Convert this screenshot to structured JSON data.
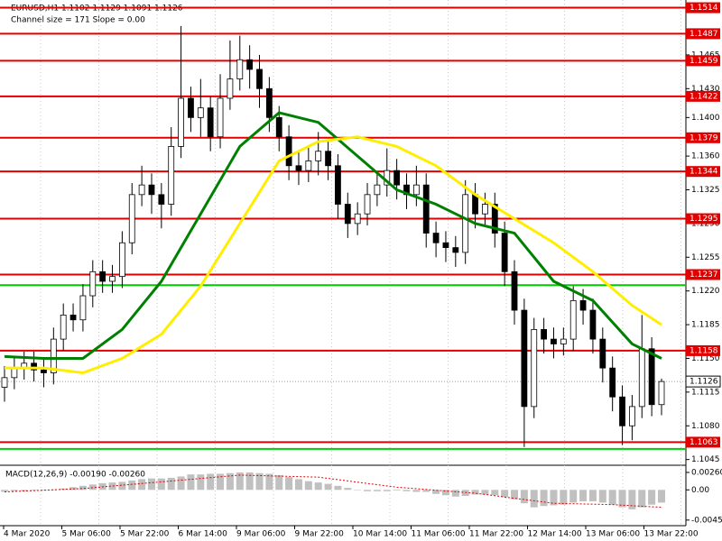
{
  "chart_data": {
    "type": "candlestick",
    "title": "EURUSD,H1  1.1102 1.1129 1.1091 1.1126",
    "subtitle": "Channel size = 171 Slope = 0.00",
    "ylim": [
      1.104,
      1.1522
    ],
    "yticks": [
      1.1465,
      {
        "value": 1.143,
        "label": "1.1430"
      },
      {
        "value": 1.14,
        "label": "1.1400"
      },
      {
        "value": 1.136,
        "label": "1.1360"
      },
      1.1325,
      {
        "value": 1.129,
        "label": "1.1290"
      },
      1.1255,
      {
        "value": 1.122,
        "label": "1.1220"
      },
      1.1185,
      {
        "value": 1.115,
        "label": "1.1150"
      },
      1.1115,
      {
        "value": 1.108,
        "label": "1.1080"
      },
      1.1045
    ],
    "levels": [
      1.1514,
      1.1487,
      1.1459,
      1.1422,
      1.1379,
      1.1344,
      1.1295,
      1.1237,
      1.1158,
      1.1063
    ],
    "level_color": "#e00000",
    "support_lines": [
      1.1226,
      1.1056
    ],
    "support_color": "#00cc00",
    "current_price": 1.1126,
    "categories": [
      "4 Mar 2020",
      "5 Mar 06:00",
      "5 Mar 22:00",
      "6 Mar 14:00",
      "9 Mar 06:00",
      "9 Mar 22:00",
      "10 Mar 14:00",
      "11 Mar 06:00",
      "11 Mar 22:00",
      "12 Mar 14:00",
      "13 Mar 06:00",
      "13 Mar 22:00"
    ],
    "open": [
      1.112,
      1.113,
      1.114,
      1.1145,
      1.1138,
      1.1135,
      1.117,
      1.1195,
      1.119,
      1.1215,
      1.124,
      1.123,
      1.1235,
      1.127,
      1.132,
      1.133,
      1.132,
      1.131,
      1.137,
      1.142,
      1.14,
      1.141,
      1.138,
      1.142,
      1.144,
      1.146,
      1.145,
      1.143,
      1.14,
      1.138,
      1.135,
      1.1345,
      1.1355,
      1.1365,
      1.135,
      1.131,
      1.129,
      1.13,
      1.132,
      1.133,
      1.1345,
      1.133,
      1.132,
      1.133,
      1.128,
      1.127,
      1.1265,
      1.126,
      1.132,
      1.13,
      1.131,
      1.128,
      1.124,
      1.12,
      1.11,
      1.118,
      1.117,
      1.1165,
      1.117,
      1.121,
      1.12,
      1.117,
      1.114,
      1.111,
      1.108,
      1.11,
      1.116,
      1.1102
    ],
    "high": [
      1.1142,
      1.1152,
      1.1157,
      1.1157,
      1.115,
      1.1182,
      1.1207,
      1.1207,
      1.1227,
      1.1252,
      1.1252,
      1.1247,
      1.1282,
      1.1332,
      1.135,
      1.1342,
      1.1332,
      1.139,
      1.1495,
      1.1432,
      1.144,
      1.1422,
      1.1445,
      1.148,
      1.1485,
      1.1475,
      1.1465,
      1.1442,
      1.1412,
      1.1392,
      1.1365,
      1.137,
      1.1385,
      1.1377,
      1.1362,
      1.1322,
      1.1312,
      1.1332,
      1.1342,
      1.1368,
      1.1357,
      1.1342,
      1.135,
      1.1342,
      1.1292,
      1.1282,
      1.1277,
      1.1335,
      1.1332,
      1.1322,
      1.1322,
      1.1292,
      1.1252,
      1.1212,
      1.1192,
      1.1192,
      1.1182,
      1.1182,
      1.1225,
      1.1222,
      1.1212,
      1.1182,
      1.1152,
      1.1122,
      1.1112,
      1.1195,
      1.1172,
      1.1129
    ],
    "low": [
      1.1105,
      1.1118,
      1.1128,
      1.1126,
      1.112,
      1.1123,
      1.1158,
      1.1178,
      1.1178,
      1.1203,
      1.1218,
      1.1218,
      1.1223,
      1.1258,
      1.1308,
      1.13,
      1.1285,
      1.1298,
      1.1358,
      1.1385,
      1.138,
      1.1365,
      1.1368,
      1.1408,
      1.1428,
      1.143,
      1.141,
      1.1385,
      1.1365,
      1.1335,
      1.133,
      1.1333,
      1.134,
      1.1335,
      1.1295,
      1.1275,
      1.1278,
      1.1288,
      1.1308,
      1.1318,
      1.1315,
      1.1305,
      1.1308,
      1.1265,
      1.1255,
      1.125,
      1.1245,
      1.1248,
      1.1285,
      1.1288,
      1.1265,
      1.1225,
      1.1185,
      1.1058,
      1.1088,
      1.1155,
      1.115,
      1.1153,
      1.1158,
      1.1185,
      1.1155,
      1.1125,
      1.1095,
      1.106,
      1.1065,
      1.1088,
      1.109,
      1.1091
    ],
    "close": [
      1.113,
      1.114,
      1.1145,
      1.1138,
      1.1135,
      1.117,
      1.1195,
      1.119,
      1.1215,
      1.124,
      1.123,
      1.1235,
      1.127,
      1.132,
      1.133,
      1.132,
      1.131,
      1.137,
      1.142,
      1.14,
      1.141,
      1.138,
      1.142,
      1.144,
      1.146,
      1.145,
      1.143,
      1.14,
      1.138,
      1.135,
      1.1345,
      1.1355,
      1.1365,
      1.135,
      1.131,
      1.129,
      1.13,
      1.132,
      1.133,
      1.1345,
      1.133,
      1.132,
      1.133,
      1.128,
      1.127,
      1.1265,
      1.126,
      1.132,
      1.13,
      1.131,
      1.128,
      1.124,
      1.12,
      1.11,
      1.118,
      1.117,
      1.1165,
      1.117,
      1.121,
      1.12,
      1.117,
      1.114,
      1.111,
      1.108,
      1.11,
      1.116,
      1.1102,
      1.1126
    ],
    "series": [
      {
        "color": "#008000",
        "x": [
          0,
          4,
          8,
          12,
          16,
          20,
          24,
          28,
          32,
          36,
          40,
          44,
          48,
          52,
          56,
          60,
          64,
          67
        ],
        "values": [
          1.1152,
          1.115,
          1.115,
          1.118,
          1.123,
          1.13,
          1.137,
          1.1405,
          1.1395,
          1.136,
          1.1325,
          1.131,
          1.129,
          1.128,
          1.123,
          1.121,
          1.1165,
          1.115
        ]
      },
      {
        "color": "#ffee00",
        "x": [
          0,
          4,
          8,
          12,
          16,
          20,
          24,
          28,
          32,
          36,
          40,
          44,
          48,
          52,
          56,
          60,
          64,
          67
        ],
        "values": [
          1.114,
          1.114,
          1.1135,
          1.115,
          1.1175,
          1.1225,
          1.129,
          1.1355,
          1.1375,
          1.138,
          1.137,
          1.135,
          1.132,
          1.1295,
          1.127,
          1.124,
          1.1205,
          1.1185
        ]
      }
    ],
    "macd": {
      "label": "MACD(12,26,9) -0.00190 -0.00260",
      "ylim": [
        -0.0052,
        0.0034
      ],
      "yticks": [
        {
          "value": 0.0026,
          "label": "0.00260"
        },
        {
          "value": 0,
          "label": "0.00"
        },
        -0.0045
      ],
      "histogram": [
        -0.0003,
        -0.0002,
        -0.0002,
        -0.0001,
        -0.0001,
        0.0,
        0.0002,
        0.0004,
        0.0006,
        0.0008,
        0.001,
        0.0011,
        0.0012,
        0.0014,
        0.0016,
        0.0017,
        0.0017,
        0.0018,
        0.002,
        0.0023,
        0.0023,
        0.0024,
        0.0024,
        0.0025,
        0.0026,
        0.0026,
        0.0025,
        0.0024,
        0.0022,
        0.0019,
        0.0016,
        0.0013,
        0.0011,
        0.0009,
        0.0006,
        0.0003,
        0.0,
        -0.0002,
        -0.0002,
        -0.0002,
        -0.0001,
        -0.0002,
        -0.0003,
        -0.0003,
        -0.0006,
        -0.0008,
        -0.001,
        -0.0009,
        -0.0007,
        -0.0007,
        -0.0008,
        -0.0011,
        -0.0014,
        -0.002,
        -0.0026,
        -0.0024,
        -0.0023,
        -0.0022,
        -0.0019,
        -0.0017,
        -0.0017,
        -0.0019,
        -0.0022,
        -0.0026,
        -0.0029,
        -0.0026,
        -0.0022,
        -0.0019
      ],
      "histogram_color": "#c0c0c0",
      "signal": {
        "color": "#e00000",
        "x": [
          0,
          8,
          16,
          24,
          32,
          40,
          48,
          56,
          62,
          67
        ],
        "values": [
          -0.0003,
          0.0002,
          0.0012,
          0.0022,
          0.0019,
          0.0004,
          -0.0005,
          -0.002,
          -0.0022,
          -0.0026
        ]
      }
    }
  }
}
